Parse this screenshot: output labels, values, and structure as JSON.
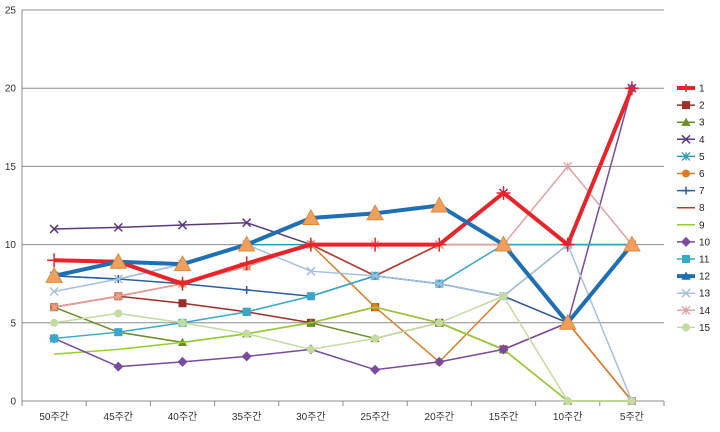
{
  "chart_data": {
    "type": "line",
    "categories": [
      "50주간",
      "45주간",
      "40주간",
      "35주간",
      "30주간",
      "25주간",
      "20주간",
      "15주간",
      "10주간",
      "5주간"
    ],
    "ylim": [
      0,
      25
    ],
    "yticks": [
      0,
      5,
      10,
      15,
      20,
      25
    ],
    "grid": true,
    "legend_position": "right",
    "series": [
      {
        "name": "1",
        "color": "#e8242a",
        "width": 4,
        "marker": "plus",
        "values": [
          9,
          8.9,
          7.5,
          8.8,
          10,
          10,
          10,
          13.3,
          10,
          20
        ]
      },
      {
        "name": "2",
        "color": "#9b2f2b",
        "width": 1.5,
        "marker": "square",
        "values": [
          6,
          6.7,
          6.25,
          5.7,
          5,
          6,
          5,
          3.3,
          5,
          0
        ]
      },
      {
        "name": "3",
        "color": "#6b8e23",
        "width": 1.5,
        "marker": "triangle",
        "values": [
          6,
          4.4,
          3.75,
          4.3,
          5,
          4,
          5,
          3.3,
          0,
          0
        ]
      },
      {
        "name": "4",
        "color": "#5b3a7f",
        "width": 1.5,
        "marker": "x",
        "values": [
          11,
          11.1,
          11.25,
          11.4,
          10,
          8,
          10,
          13.3,
          10,
          20
        ]
      },
      {
        "name": "5",
        "color": "#2a9bb5",
        "width": 1.5,
        "marker": "star",
        "values": [
          8,
          7.8,
          8.75,
          10,
          10,
          8,
          7.5,
          6.7,
          10,
          10
        ]
      },
      {
        "name": "6",
        "color": "#e07b22",
        "width": 1.5,
        "marker": "circle",
        "values": [
          6,
          6.7,
          7.5,
          8.6,
          10,
          6,
          2.5,
          6.7,
          5,
          0
        ]
      },
      {
        "name": "7",
        "color": "#2c5ea8",
        "width": 1.5,
        "marker": "plus",
        "values": [
          8,
          7.8,
          7.5,
          7.1,
          6.7,
          8,
          7.5,
          6.7,
          5,
          10
        ]
      },
      {
        "name": "8",
        "color": "#c0392b",
        "width": 1.5,
        "marker": "none",
        "values": [
          6,
          6.7,
          7.5,
          8.6,
          10,
          8,
          10,
          10,
          10,
          10
        ]
      },
      {
        "name": "9",
        "color": "#9acd32",
        "width": 1.5,
        "marker": "none",
        "values": [
          3,
          3.3,
          3.75,
          4.3,
          5,
          6,
          5,
          3.3,
          0,
          0
        ]
      },
      {
        "name": "10",
        "color": "#7a4a9e",
        "width": 1.5,
        "marker": "diamond",
        "values": [
          4,
          2.2,
          2.5,
          2.85,
          3.3,
          2,
          2.5,
          3.3,
          5,
          20
        ]
      },
      {
        "name": "11",
        "color": "#37a8c9",
        "width": 1.5,
        "marker": "square",
        "values": [
          4,
          4.4,
          5,
          5.7,
          6.7,
          8,
          7.5,
          10,
          10,
          10
        ]
      },
      {
        "name": "12",
        "color": "#1f6fb5",
        "width": 4,
        "marker": "triangle",
        "values": [
          8,
          8.9,
          8.75,
          10,
          11.7,
          12,
          12.5,
          10,
          5,
          10
        ]
      },
      {
        "name": "13",
        "color": "#a8bfe0",
        "width": 1.5,
        "marker": "x",
        "values": [
          7,
          7.8,
          8.75,
          10,
          8.3,
          8,
          7.5,
          6.7,
          10,
          0
        ]
      },
      {
        "name": "14",
        "color": "#e3a3a3",
        "width": 1.5,
        "marker": "star",
        "values": [
          6,
          6.7,
          7.5,
          8.6,
          10,
          10,
          10,
          10,
          15,
          10
        ]
      },
      {
        "name": "15",
        "color": "#c4dba0",
        "width": 1.5,
        "marker": "circle",
        "values": [
          5,
          5.6,
          5,
          4.3,
          3.3,
          4,
          5,
          6.7,
          0,
          0
        ]
      }
    ]
  }
}
